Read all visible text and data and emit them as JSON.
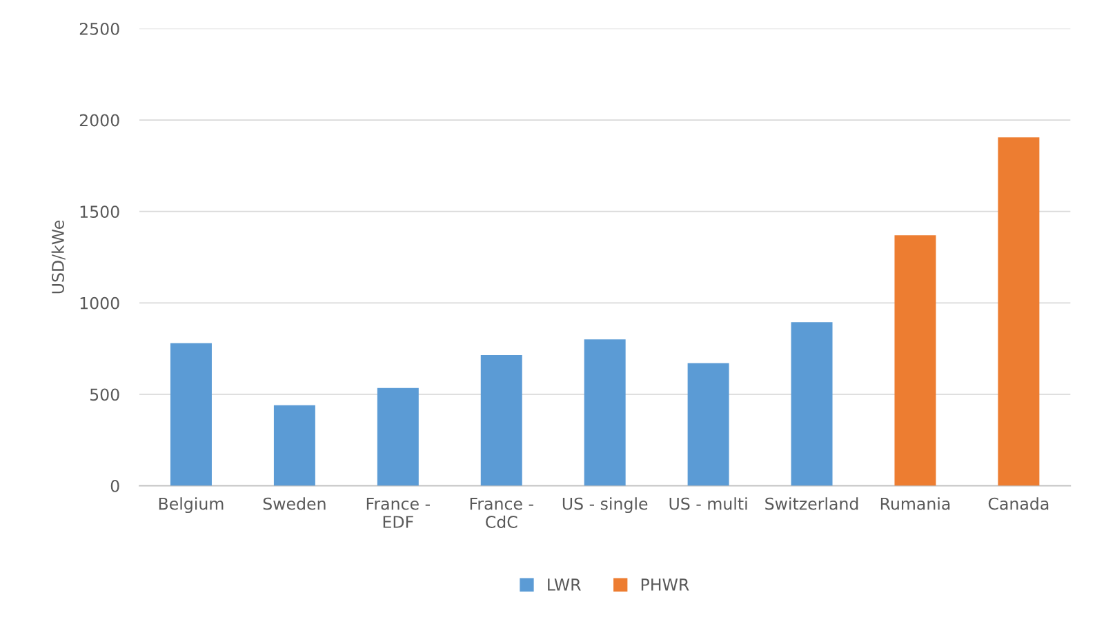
{
  "chart_data": {
    "type": "bar",
    "ylabel": "USD/kWe",
    "categories": [
      "Belgium",
      "Sweden",
      "France -\nEDF",
      "France -\nCdC",
      "US - single",
      "US - multi",
      "Switzerland",
      "Rumania",
      "Canada"
    ],
    "series": [
      {
        "name": "LWR",
        "color": "#5b9bd5",
        "values": [
          780,
          440,
          535,
          715,
          800,
          670,
          895,
          null,
          null
        ]
      },
      {
        "name": "PHWR",
        "color": "#ed7d31",
        "values": [
          null,
          null,
          null,
          null,
          null,
          null,
          null,
          1370,
          1905
        ]
      }
    ],
    "stacked": true,
    "ylim": [
      0,
      2500
    ],
    "yticks": [
      0,
      500,
      1000,
      1500,
      2000,
      2500
    ],
    "grid": "y",
    "legend": "bottom"
  }
}
